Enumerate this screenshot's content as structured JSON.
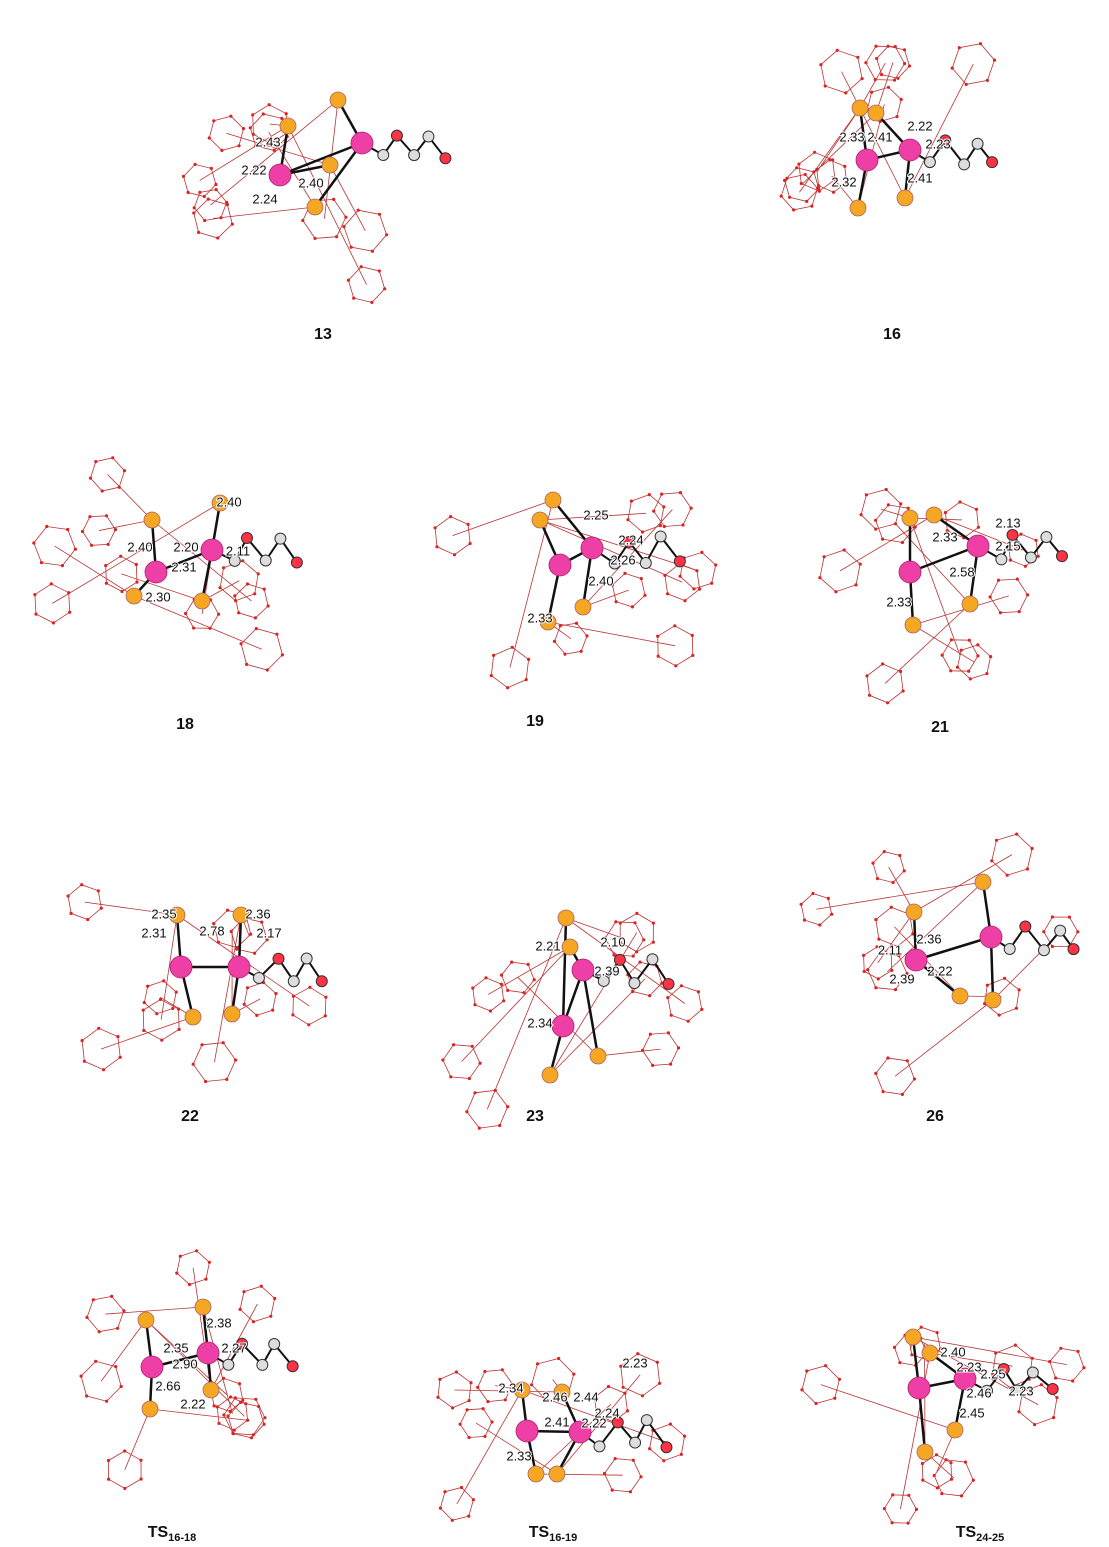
{
  "panels": [
    {
      "label": "13",
      "distances": [
        "2.43",
        "2.22",
        "2.24",
        "2.40"
      ]
    },
    {
      "label": "16",
      "distances": [
        "2.33",
        "2.41",
        "2.22",
        "2.23",
        "2.32",
        "2.41"
      ]
    },
    {
      "label": "18",
      "distances": [
        "2.40",
        "2.40",
        "2.20",
        "2.11",
        "2.31",
        "2.30"
      ]
    },
    {
      "label": "19",
      "distances": [
        "2.25",
        "2.24",
        "2.26",
        "2.40",
        "2.33"
      ]
    },
    {
      "label": "21",
      "distances": [
        "2.13",
        "2.33",
        "2.15",
        "2.58",
        "2.33"
      ]
    },
    {
      "label": "22",
      "distances": [
        "2.35",
        "2.36",
        "2.31",
        "2.78",
        "2.17"
      ]
    },
    {
      "label": "23",
      "distances": [
        "2.21",
        "2.10",
        "2.39",
        "2.34"
      ]
    },
    {
      "label": "26",
      "distances": [
        "2.36",
        "2.11",
        "2.22",
        "2.39"
      ]
    },
    {
      "label": "TS",
      "sub": "16-18",
      "distances": [
        "2.38",
        "2.35",
        "2.27",
        "2.90",
        "2.66",
        "2.22"
      ]
    },
    {
      "label": "TS",
      "sub": "16-19",
      "distances": [
        "2.23",
        "2.34",
        "2.46",
        "2.44",
        "2.24",
        "2.41",
        "2.22",
        "2.33"
      ]
    },
    {
      "label": "TS",
      "sub": "24-25",
      "distances": [
        "2.40",
        "2.23",
        "2.25",
        "2.46",
        "2.23",
        "2.45"
      ]
    }
  ]
}
